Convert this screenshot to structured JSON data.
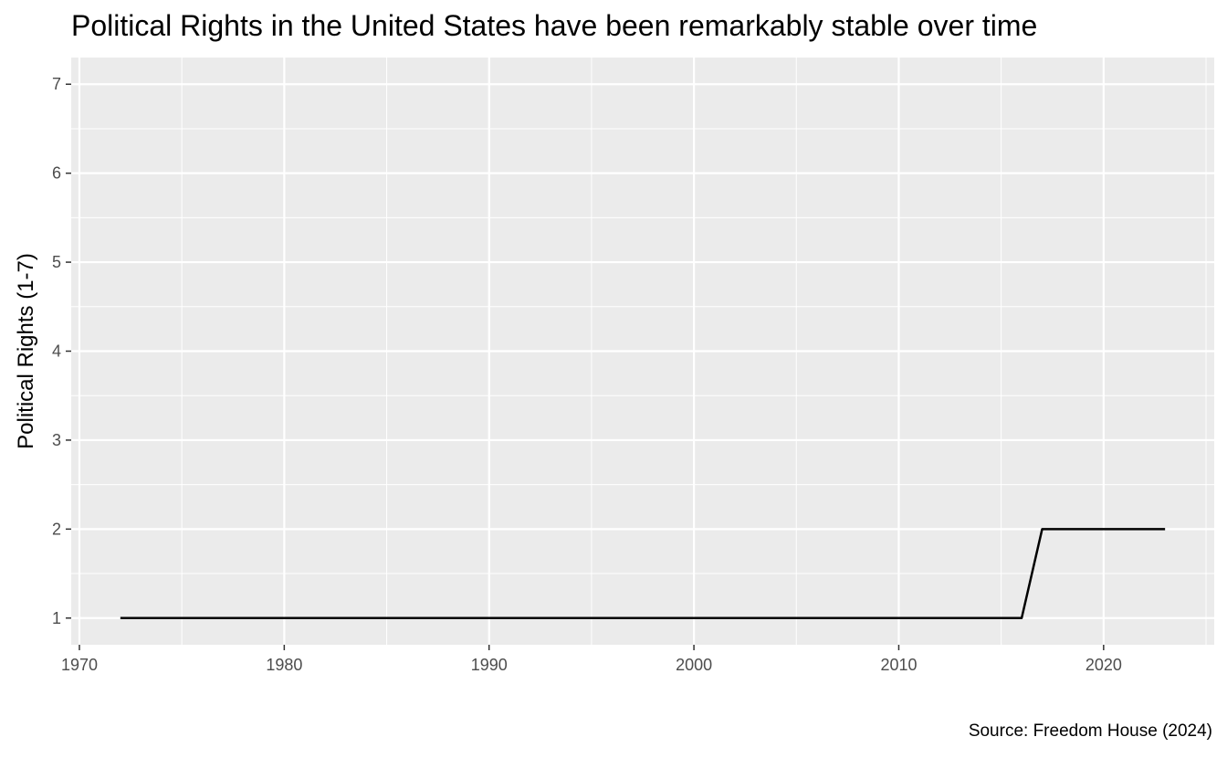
{
  "chart_data": {
    "type": "line",
    "title": "Political Rights in the United States have been remarkably stable over time",
    "caption": "Source: Freedom House (2024)",
    "xlabel": "",
    "ylabel": "Political Rights (1-7)",
    "xlim": [
      1969.6,
      2025.4
    ],
    "ylim": [
      0.7,
      7.3
    ],
    "x_ticks": [
      1970,
      1980,
      1990,
      2000,
      2010,
      2020
    ],
    "y_ticks": [
      1,
      2,
      3,
      4,
      5,
      6,
      7
    ],
    "grid": true,
    "legend": "none",
    "line_color": "#000000",
    "panel_color": "#ebebeb",
    "series": [
      {
        "x": [
          1972,
          1973,
          1974,
          1975,
          1976,
          1977,
          1978,
          1979,
          1980,
          1981,
          1982,
          1983,
          1984,
          1985,
          1986,
          1987,
          1988,
          1989,
          1990,
          1991,
          1992,
          1993,
          1994,
          1995,
          1996,
          1997,
          1998,
          1999,
          2000,
          2001,
          2002,
          2003,
          2004,
          2005,
          2006,
          2007,
          2008,
          2009,
          2010,
          2011,
          2012,
          2013,
          2014,
          2015,
          2016,
          2017,
          2018,
          2019,
          2020,
          2021,
          2022,
          2023
        ],
        "values": [
          1,
          1,
          1,
          1,
          1,
          1,
          1,
          1,
          1,
          1,
          1,
          1,
          1,
          1,
          1,
          1,
          1,
          1,
          1,
          1,
          1,
          1,
          1,
          1,
          1,
          1,
          1,
          1,
          1,
          1,
          1,
          1,
          1,
          1,
          1,
          1,
          1,
          1,
          1,
          1,
          1,
          1,
          1,
          1,
          1,
          2,
          2,
          2,
          2,
          2,
          2,
          2
        ]
      }
    ]
  }
}
